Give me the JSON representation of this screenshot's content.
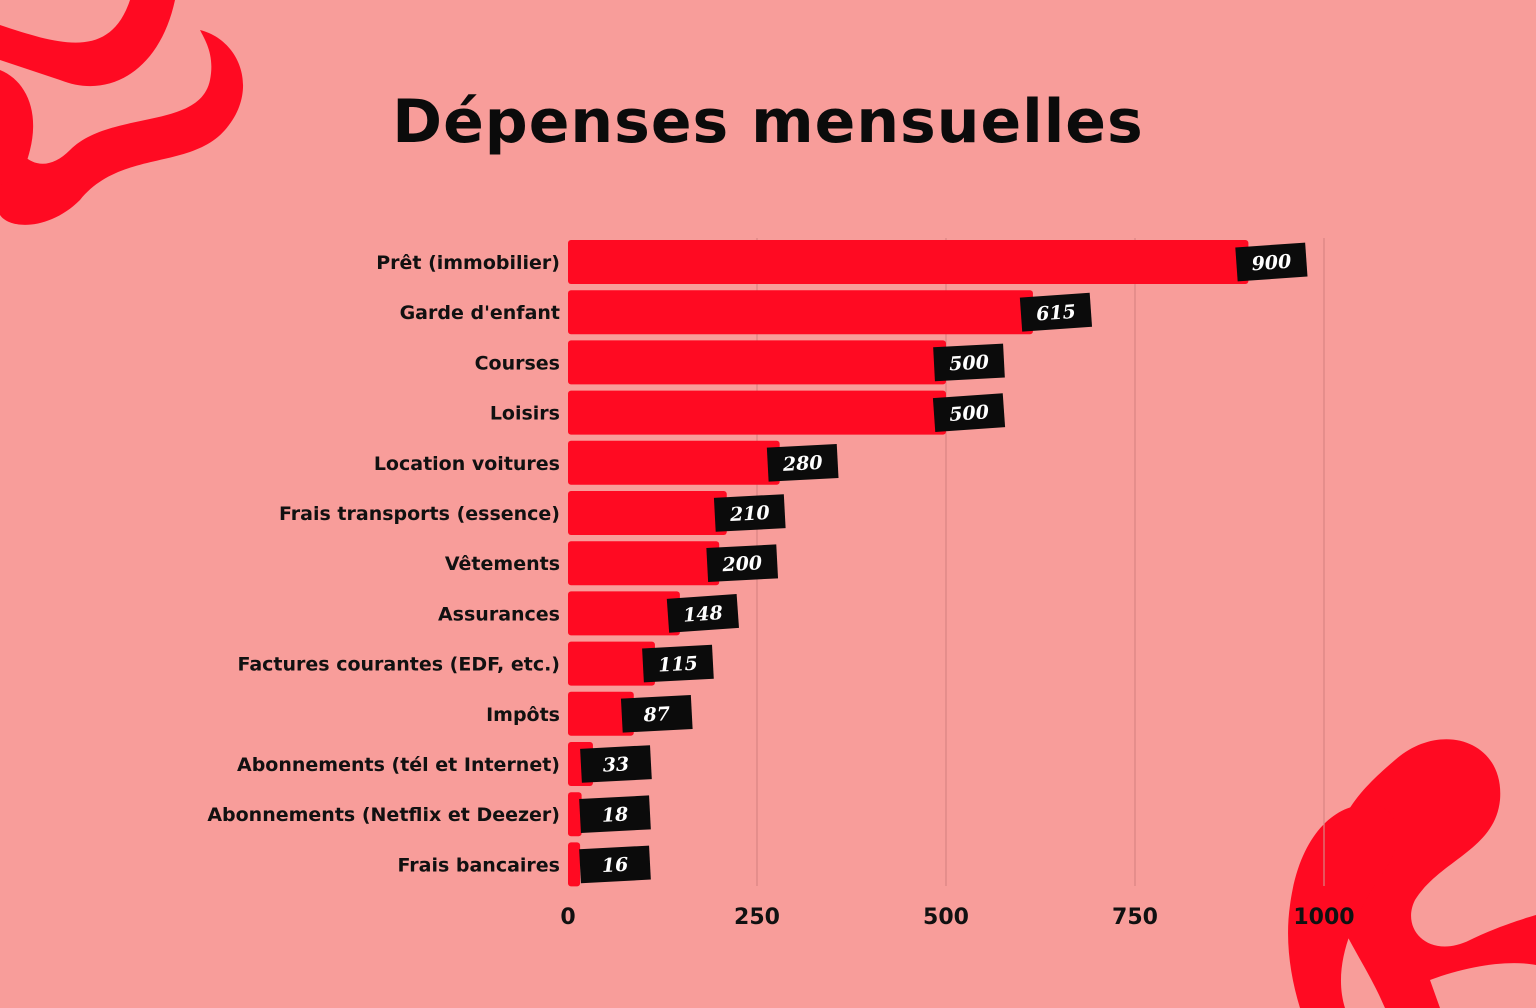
{
  "colors": {
    "background": "#f89d9a",
    "bar": "#ff0a22",
    "label_box": "#0b0b0b",
    "decoration": "#ff0a22",
    "text": "#111111"
  },
  "chart_data": {
    "type": "bar",
    "orientation": "horizontal",
    "title": "Dépenses mensuelles",
    "xlabel": "",
    "ylabel": "",
    "xlim": [
      0,
      1000
    ],
    "x_ticks": [
      "0",
      "250",
      "500",
      "750",
      "1000"
    ],
    "grid": true,
    "legend": "none",
    "categories": [
      "Prêt (immobilier)",
      "Garde d'enfant",
      "Courses",
      "Loisirs",
      "Location voitures",
      "Frais transports (essence)",
      "Vêtements",
      "Assurances",
      "Factures courantes (EDF, etc.)",
      "Impôts",
      "Abonnements (tél et Internet)",
      "Abonnements (Netflix et Deezer)",
      "Frais bancaires"
    ],
    "values": [
      900,
      615,
      500,
      500,
      280,
      210,
      200,
      148,
      115,
      87,
      33,
      18,
      16
    ],
    "data_labels": [
      "900",
      "615",
      "500",
      "500",
      "280",
      "210",
      "200",
      "148",
      "115",
      "87",
      "33",
      "18",
      "16"
    ]
  }
}
